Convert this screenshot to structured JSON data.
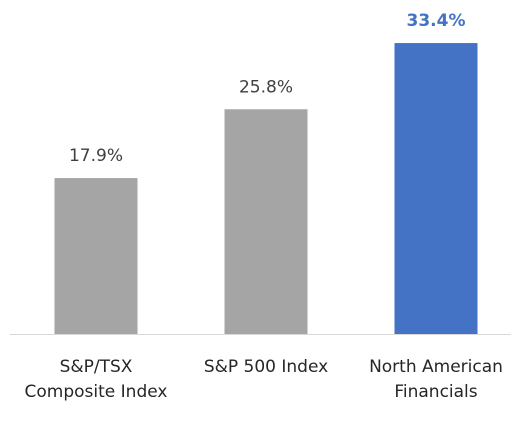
{
  "chart_data": {
    "type": "bar",
    "categories": [
      "S&P/TSX Composite Index",
      "S&P 500 Index",
      "North American Financials"
    ],
    "values": [
      17.9,
      25.8,
      33.4
    ],
    "value_labels": [
      "17.9%",
      "25.8%",
      "33.4%"
    ],
    "colors": [
      "#a5a5a5",
      "#a5a5a5",
      "#4472c4"
    ],
    "value_label_colors": [
      "#404040",
      "#404040",
      "#4472c4"
    ],
    "value_label_bold": [
      false,
      false,
      true
    ],
    "ylim": [
      0,
      38
    ]
  }
}
